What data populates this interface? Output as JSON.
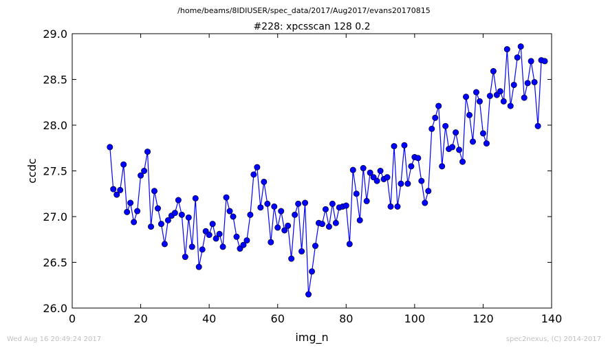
{
  "figure": {
    "suptitle": "/home/beams/8IDIUSER/spec_data/2017/Aug2017/evans20170815",
    "footer_left": "Wed Aug 16 20:49:24 2017",
    "footer_right": "spec2nexus, (C) 2014-2017"
  },
  "colors": {
    "series": "#0000ff",
    "marker": "#0000cc",
    "axes": "#000000",
    "footer": "#c0c0c0"
  },
  "chart_data": {
    "type": "line",
    "title": "#228: xpcsscan 128 0.2",
    "xlabel": "img_n",
    "ylabel": "ccdc",
    "xlim": [
      0,
      140
    ],
    "ylim": [
      26.0,
      29.0
    ],
    "xticks": [
      "0",
      "20",
      "40",
      "60",
      "80",
      "100",
      "120",
      "140"
    ],
    "yticks": [
      "26.0",
      "26.5",
      "27.0",
      "27.5",
      "28.0",
      "28.5",
      "29.0"
    ],
    "grid": false,
    "legend": "none",
    "marker": "circle",
    "series": [
      {
        "x": [
          11,
          12,
          13,
          14,
          15,
          16,
          17,
          18,
          19,
          20,
          21,
          22,
          23,
          24,
          25,
          26,
          27,
          28,
          29,
          30,
          31,
          32,
          33,
          34,
          35,
          36,
          37,
          38,
          39,
          40,
          41,
          42,
          43,
          44,
          45,
          46,
          47,
          48,
          49,
          50,
          51,
          52,
          53,
          54,
          55,
          56,
          57,
          58,
          59,
          60,
          61,
          62,
          63,
          64,
          65,
          66,
          67,
          68,
          69,
          70,
          71,
          72,
          73,
          74,
          75,
          76,
          77,
          78,
          79,
          80,
          81,
          82,
          83,
          84,
          85,
          86,
          87,
          88,
          89,
          90,
          91,
          92,
          93,
          94,
          95,
          96,
          97,
          98,
          99,
          100,
          101,
          102,
          103,
          104,
          105,
          106,
          107,
          108,
          109,
          110,
          111,
          112,
          113,
          114,
          115,
          116,
          117,
          118,
          119,
          120,
          121,
          122,
          123,
          124,
          125,
          126,
          127,
          128,
          129,
          130,
          131,
          132,
          133,
          134,
          135,
          136,
          137,
          138
        ],
        "y": [
          27.76,
          27.3,
          27.24,
          27.29,
          27.57,
          27.05,
          27.15,
          26.94,
          27.06,
          27.45,
          27.5,
          27.71,
          26.89,
          27.28,
          27.09,
          26.92,
          26.7,
          26.96,
          27.01,
          27.04,
          27.18,
          27.02,
          26.56,
          26.99,
          26.67,
          27.2,
          26.45,
          26.64,
          26.84,
          26.8,
          26.92,
          26.76,
          26.81,
          26.67,
          27.21,
          27.06,
          27.0,
          26.78,
          26.65,
          26.69,
          26.74,
          27.02,
          27.46,
          27.54,
          27.1,
          27.38,
          27.14,
          26.72,
          27.11,
          26.88,
          27.06,
          26.85,
          26.9,
          26.54,
          27.02,
          27.14,
          26.62,
          27.15,
          26.15,
          26.4,
          26.68,
          26.93,
          26.92,
          27.08,
          26.89,
          27.14,
          26.93,
          27.1,
          27.11,
          27.12,
          26.7,
          27.51,
          27.25,
          26.96,
          27.53,
          27.17,
          27.48,
          27.43,
          27.39,
          27.5,
          27.41,
          27.43,
          27.11,
          27.77,
          27.11,
          27.36,
          27.78,
          27.36,
          27.55,
          27.65,
          27.64,
          27.39,
          27.15,
          27.28,
          27.96,
          28.08,
          28.21,
          27.55,
          27.99,
          27.74,
          27.76,
          27.92,
          27.73,
          27.6,
          28.31,
          28.11,
          27.82,
          28.36,
          28.26,
          27.91,
          27.8,
          28.32,
          28.59,
          28.33,
          28.37,
          28.26,
          28.83,
          28.21,
          28.44,
          28.74,
          28.86,
          28.3,
          28.46,
          28.7,
          28.47,
          27.99,
          28.71,
          28.7
        ]
      }
    ]
  }
}
